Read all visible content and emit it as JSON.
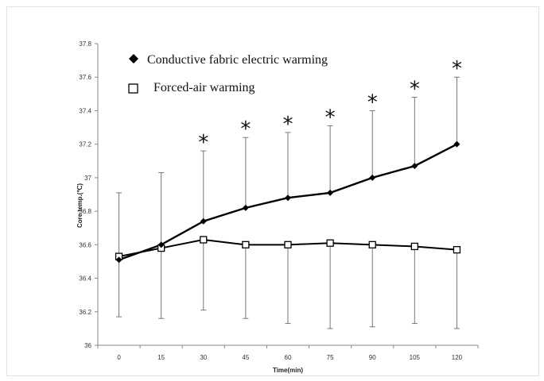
{
  "chart_data": {
    "type": "line",
    "title": "",
    "xlabel": "Time(min)",
    "ylabel": "Core temp.(℃)",
    "x": [
      0,
      15,
      30,
      45,
      60,
      75,
      90,
      105,
      120
    ],
    "x_tick_labels": [
      "0",
      "15",
      "30",
      "45",
      "60",
      "75",
      "90",
      "105",
      "120"
    ],
    "ylim": [
      36,
      37.8
    ],
    "y_ticks": [
      36,
      36.2,
      36.4,
      36.6,
      36.8,
      37,
      37.2,
      37.4,
      37.6,
      37.8
    ],
    "y_tick_labels": [
      "36",
      "36.2",
      "36.4",
      "36.6",
      "36.8",
      "37",
      "37.2",
      "37.4",
      "37.6",
      "37.8"
    ],
    "grid": false,
    "legend_position": "top-left",
    "series": [
      {
        "name": "Conductive fabric electric warming",
        "marker": "filled-diamond",
        "color": "#000000",
        "values": [
          36.51,
          36.6,
          36.74,
          36.82,
          36.88,
          36.91,
          37.0,
          37.07,
          37.2
        ],
        "error_upper": [
          36.91,
          37.03,
          37.16,
          37.24,
          37.27,
          37.31,
          37.4,
          37.48,
          37.6
        ]
      },
      {
        "name": "Forced-air warming",
        "marker": "open-square",
        "color": "#000000",
        "values": [
          36.53,
          36.58,
          36.63,
          36.6,
          36.6,
          36.61,
          36.6,
          36.59,
          36.57
        ],
        "error_lower": [
          36.17,
          36.16,
          36.21,
          36.16,
          36.13,
          36.1,
          36.11,
          36.13,
          36.1
        ]
      }
    ],
    "significance_marker": "*",
    "significant_at_x": [
      30,
      45,
      60,
      75,
      90,
      105,
      120
    ]
  }
}
